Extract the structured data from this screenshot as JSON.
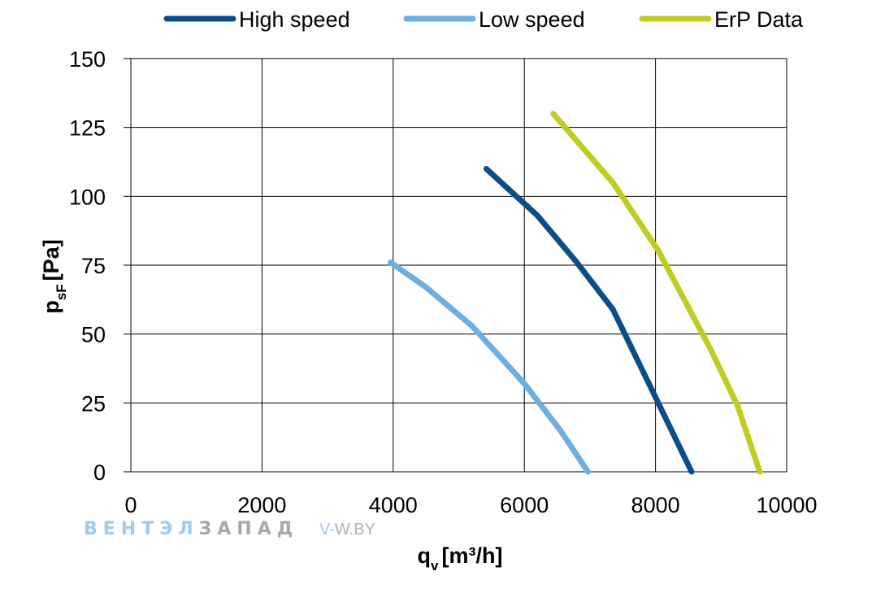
{
  "chart_data": {
    "type": "line",
    "xlabel": {
      "main": "q",
      "sub": "v",
      "unit": "[m³/h]"
    },
    "ylabel": {
      "main": "p",
      "sub": "sF",
      "unit": "[Pa]"
    },
    "xlim": [
      0,
      10000
    ],
    "ylim": [
      0,
      150
    ],
    "xticks": [
      0,
      2000,
      4000,
      6000,
      8000,
      10000
    ],
    "yticks": [
      0,
      25,
      50,
      75,
      100,
      125,
      150
    ],
    "grid": true,
    "legend_position": "top",
    "series": [
      {
        "name": "High speed",
        "color": "#0B4D8A",
        "x": [
          5420,
          6200,
          6800,
          7350,
          7900,
          8550
        ],
        "y": [
          110,
          93,
          76,
          59,
          32,
          0
        ]
      },
      {
        "name": "Low speed",
        "color": "#6EAEE0",
        "x": [
          3960,
          4500,
          5200,
          6000,
          6550,
          6970
        ],
        "y": [
          76,
          67,
          53,
          32,
          15,
          0
        ]
      },
      {
        "name": "ErP Data",
        "color": "#C0CC22",
        "x": [
          6440,
          7350,
          8050,
          8850,
          9250,
          9590
        ],
        "y": [
          130,
          105,
          80,
          44,
          24,
          0
        ]
      }
    ]
  },
  "watermark": {
    "brand_part1": "ВЕНТЭЛ",
    "brand_part2": "ЗАПАД",
    "site_prefix": "V-",
    "site_rest": "W.BY"
  }
}
